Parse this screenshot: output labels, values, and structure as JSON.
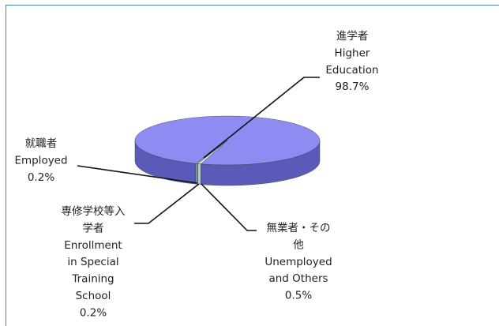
{
  "chart_data": {
    "type": "pie",
    "categories": [
      [
        "進学者",
        "Higher",
        "Education"
      ],
      [
        "就職者",
        "Employed"
      ],
      [
        "専修学校等入",
        "学者",
        "Enrollment",
        "in Special",
        "Training",
        "School"
      ],
      [
        "無業者・その",
        "他",
        "Unemployed",
        "and Others"
      ]
    ],
    "values": [
      98.7,
      0.2,
      0.2,
      0.5
    ],
    "value_labels": [
      "98.7%",
      "0.2%",
      "0.2%",
      "0.5%"
    ],
    "colors": [
      "#8c8cf2",
      "#d8f0ee",
      "#b8e0dc",
      "#eef8f6"
    ],
    "side_colors": [
      "#5a5ab8",
      "#9cc0bc",
      "#80aaa6",
      "#b0cccc"
    ]
  }
}
